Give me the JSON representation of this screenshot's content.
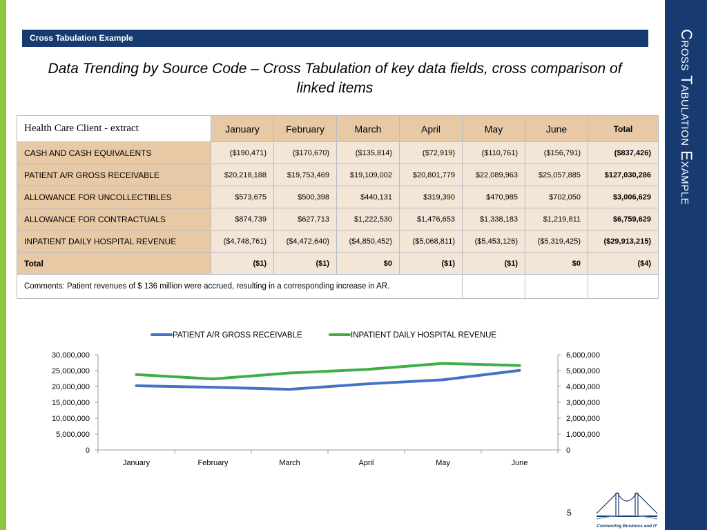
{
  "side_title": "Cross Tabulation Example",
  "section_label": "Cross Tabulation Example",
  "headline": "Data Trending by Source Code – Cross Tabulation of key data fields, cross comparison of linked items",
  "table": {
    "corner_label": "Health Care Client - extract",
    "months": [
      "January",
      "February",
      "March",
      "April",
      "May",
      "June"
    ],
    "total_header": "Total",
    "rows": [
      {
        "label": "CASH AND CASH EQUIVALENTS",
        "values": [
          "($190,471)",
          "($170,670)",
          "($135,814)",
          "($72,919)",
          "($110,761)",
          "($156,791)"
        ],
        "total": "($837,426)"
      },
      {
        "label": "PATIENT A/R GROSS RECEIVABLE",
        "values": [
          "$20,218,188",
          "$19,753,469",
          "$19,109,002",
          "$20,801,779",
          "$22,089,963",
          "$25,057,885"
        ],
        "total": "$127,030,286"
      },
      {
        "label": "ALLOWANCE FOR UNCOLLECTIBLES",
        "values": [
          "$573,675",
          "$500,398",
          "$440,131",
          "$319,390",
          "$470,985",
          "$702,050"
        ],
        "total": "$3,006,629"
      },
      {
        "label": "ALLOWANCE FOR CONTRACTUALS",
        "values": [
          "$874,739",
          "$627,713",
          "$1,222,530",
          "$1,476,653",
          "$1,338,183",
          "$1,219,811"
        ],
        "total": "$6,759,629"
      },
      {
        "label": "INPATIENT DAILY HOSPITAL REVENUE",
        "values": [
          "($4,748,761)",
          "($4,472,640)",
          "($4,850,452)",
          "($5,068,811)",
          "($5,453,126)",
          "($5,319,425)"
        ],
        "total": "($29,913,215)"
      }
    ],
    "total_row": {
      "label": "Total",
      "values": [
        "($1)",
        "($1)",
        "$0",
        "($1)",
        "($1)",
        "$0"
      ],
      "total": "($4)"
    },
    "comment": "Comments:  Patient revenues of $ 136 million were accrued, resulting in a corresponding increase in AR."
  },
  "chart_data": {
    "type": "line",
    "categories": [
      "January",
      "February",
      "March",
      "April",
      "May",
      "June"
    ],
    "series": [
      {
        "name": "PATIENT A/R GROSS RECEIVABLE",
        "axis": "left",
        "color": "#4472c4",
        "values": [
          20218188,
          19753469,
          19109002,
          20801779,
          22089963,
          25057885
        ]
      },
      {
        "name": "INPATIENT DAILY HOSPITAL REVENUE",
        "axis": "right",
        "color": "#3fae49",
        "values": [
          4748761,
          4472640,
          4850452,
          5068811,
          5453126,
          5319425
        ]
      }
    ],
    "y_left": {
      "range": [
        0,
        30000000
      ],
      "ticks": [
        "0",
        "5,000,000",
        "10,000,000",
        "15,000,000",
        "20,000,000",
        "25,000,000",
        "30,000,000"
      ]
    },
    "y_right": {
      "range": [
        0,
        6000000
      ],
      "ticks": [
        "0",
        "1,000,000",
        "2,000,000",
        "3,000,000",
        "4,000,000",
        "5,000,000",
        "6,000,000"
      ]
    },
    "legend_position": "top",
    "grid": false
  },
  "page_number": "5",
  "logo_tagline": "Connecting Business and IT",
  "colors": {
    "navy": "#173a70",
    "accent_green": "#8dc63f",
    "row_tan": "#e7c9a6",
    "cell_light": "#f3e6d7"
  }
}
